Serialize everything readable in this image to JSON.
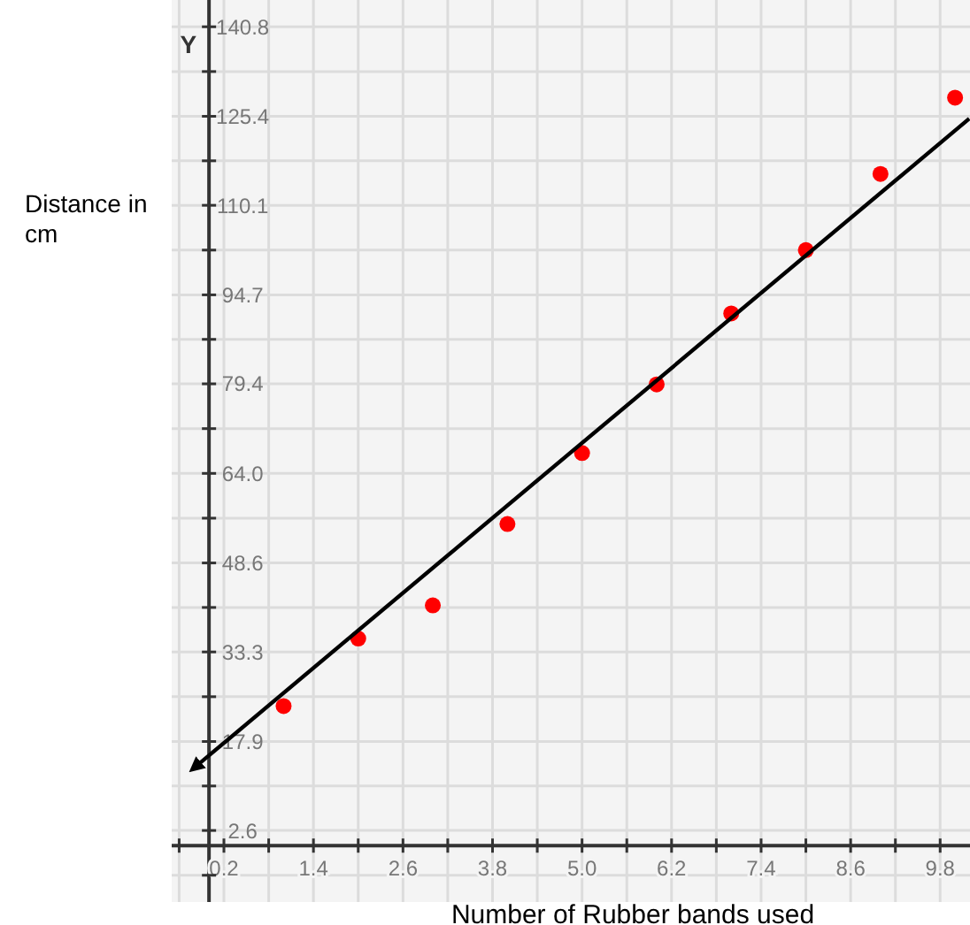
{
  "chart_data": {
    "type": "scatter",
    "xlabel": "Number of Rubber bands used",
    "ylabel": "Distance in cm",
    "annotations": [
      "Y"
    ],
    "x": [
      1,
      2,
      3,
      4,
      5,
      6,
      7,
      8,
      9,
      10
    ],
    "series": [
      {
        "marker": "circle",
        "color": "#ff0000",
        "values": [
          24.0,
          35.6,
          41.3,
          55.3,
          67.5,
          79.3,
          91.5,
          102.4,
          115.5,
          128.6
        ]
      },
      {
        "type": "line",
        "color": "#000000",
        "x": [
          -0.14,
          10.19
        ],
        "values": [
          14.0,
          125.0
        ]
      }
    ],
    "xlim": [
      -0.5,
      10.2
    ],
    "ylim": [
      -9.7,
      145.4
    ],
    "xticks": [
      {
        "value": -0.4,
        "label": null
      },
      0.2,
      {
        "value": 0.8,
        "label": null
      },
      1.4,
      {
        "value": 2.0,
        "label": null
      },
      2.6,
      {
        "value": 3.2,
        "label": null
      },
      3.8,
      {
        "value": 4.4,
        "label": null
      },
      {
        "value": 5.0,
        "label": "5.0"
      },
      {
        "value": 5.6,
        "label": null
      },
      6.2,
      {
        "value": 6.8,
        "label": null
      },
      7.4,
      {
        "value": 8.0,
        "label": null
      },
      8.6,
      {
        "value": 9.2,
        "label": null
      },
      9.8
    ],
    "yticks": [
      {
        "value": -5.1,
        "label": null
      },
      2.6,
      {
        "value": 10.25,
        "label": null
      },
      17.9,
      {
        "value": 25.6,
        "label": null
      },
      33.3,
      {
        "value": 40.95,
        "label": null
      },
      48.6,
      {
        "value": 56.3,
        "label": null
      },
      {
        "value": 64.0,
        "label": "64.0"
      },
      {
        "value": 71.7,
        "label": null
      },
      79.4,
      {
        "value": 87.05,
        "label": null
      },
      94.7,
      {
        "value": 102.4,
        "label": null
      },
      110.1,
      {
        "value": 117.75,
        "label": null
      },
      125.4,
      {
        "value": 133.1,
        "label": null
      },
      140.8
    ],
    "grid": true,
    "line_style": "solid"
  }
}
